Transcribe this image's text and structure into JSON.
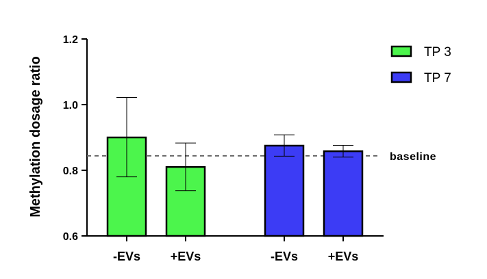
{
  "chart_data": {
    "type": "bar",
    "title": "",
    "xlabel": "",
    "ylabel": "Methylation dosage ratio",
    "ylim": [
      0.6,
      1.2
    ],
    "yticks": [
      0.6,
      0.8,
      1.0,
      1.2
    ],
    "ytick_labels": [
      "0.6",
      "0.8",
      "1.0",
      "1.2"
    ],
    "categories": [
      "-EVs",
      "+EVs",
      "-EVs",
      "+EVs"
    ],
    "series": [
      {
        "name": "TP 3",
        "color": "#4cf54c",
        "bars": [
          {
            "category": "-EVs",
            "value": 0.9,
            "error_low": 0.78,
            "error_high": 1.022
          },
          {
            "category": "+EVs",
            "value": 0.81,
            "error_low": 0.738,
            "error_high": 0.883
          }
        ]
      },
      {
        "name": "TP 7",
        "color": "#3c3cf5",
        "bars": [
          {
            "category": "-EVs",
            "value": 0.875,
            "error_low": 0.843,
            "error_high": 0.908
          },
          {
            "category": "+EVs",
            "value": 0.858,
            "error_low": 0.84,
            "error_high": 0.876
          }
        ]
      }
    ],
    "reference_line": {
      "label": "baseline",
      "value": 0.844,
      "style": "dashed",
      "color": "#666666"
    },
    "legend": {
      "position": "top-right",
      "entries": [
        "TP 3",
        "TP 7"
      ]
    },
    "grid": false
  }
}
